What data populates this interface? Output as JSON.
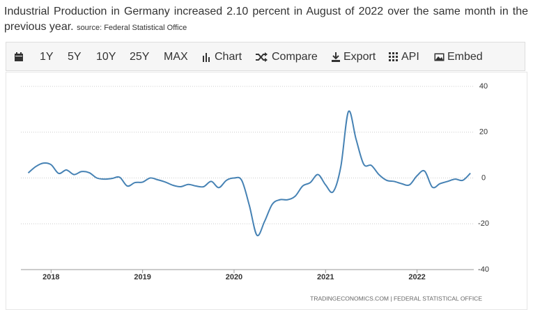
{
  "header": {
    "headline": "Industrial Production in Germany increased 2.10 percent in August of 2022 over the same month in the previous year.",
    "source": "source: Federal Statistical Office"
  },
  "toolbar": {
    "ranges": [
      "1Y",
      "5Y",
      "10Y",
      "25Y",
      "MAX"
    ],
    "actions": [
      "Chart",
      "Compare",
      "Export",
      "API",
      "Embed"
    ]
  },
  "chart_data": {
    "type": "line",
    "footer": "TRADINGECONOMICS.COM | FEDERAL STATISTICAL OFFICE",
    "x": [
      2017.75,
      2017.833,
      2017.917,
      2018,
      2018.083,
      2018.167,
      2018.25,
      2018.333,
      2018.417,
      2018.5,
      2018.583,
      2018.667,
      2018.75,
      2018.833,
      2018.917,
      2019,
      2019.083,
      2019.167,
      2019.25,
      2019.333,
      2019.417,
      2019.5,
      2019.583,
      2019.667,
      2019.75,
      2019.833,
      2019.917,
      2020,
      2020.083,
      2020.167,
      2020.25,
      2020.333,
      2020.417,
      2020.5,
      2020.583,
      2020.667,
      2020.75,
      2020.833,
      2020.917,
      2021,
      2021.083,
      2021.167,
      2021.25,
      2021.333,
      2021.417,
      2021.5,
      2021.583,
      2021.667,
      2021.75,
      2021.833,
      2021.917,
      2022,
      2022.083,
      2022.167,
      2022.25,
      2022.333,
      2022.417,
      2022.5,
      2022.583
    ],
    "series": [
      {
        "color": "#4682b4",
        "values": [
          2.2,
          5,
          6.5,
          5.8,
          2,
          3.5,
          1.5,
          2.8,
          2.3,
          0,
          -0.5,
          -0.2,
          0.3,
          -3.5,
          -2,
          -1.8,
          0,
          -0.8,
          -1.8,
          -3.2,
          -3.8,
          -2.8,
          -3.5,
          -3.8,
          -1.5,
          -4.2,
          -1,
          0,
          -1,
          -12,
          -25,
          -19,
          -11.5,
          -9.5,
          -9.5,
          -8,
          -3.5,
          -2,
          1.5,
          -3,
          -6,
          5,
          29,
          17,
          6,
          5.5,
          1.5,
          -1,
          -1.5,
          -2.5,
          -3,
          1,
          3,
          -4,
          -2.5,
          -1.5,
          -0.5,
          -1,
          2.1
        ]
      }
    ],
    "xlim": [
      2017.67,
      2022.62
    ],
    "xticks": [
      2018,
      2019,
      2020,
      2021,
      2022
    ],
    "ylim": [
      -40,
      40
    ],
    "yticks": [
      -40,
      -20,
      0,
      20,
      40
    ],
    "grid": true
  }
}
